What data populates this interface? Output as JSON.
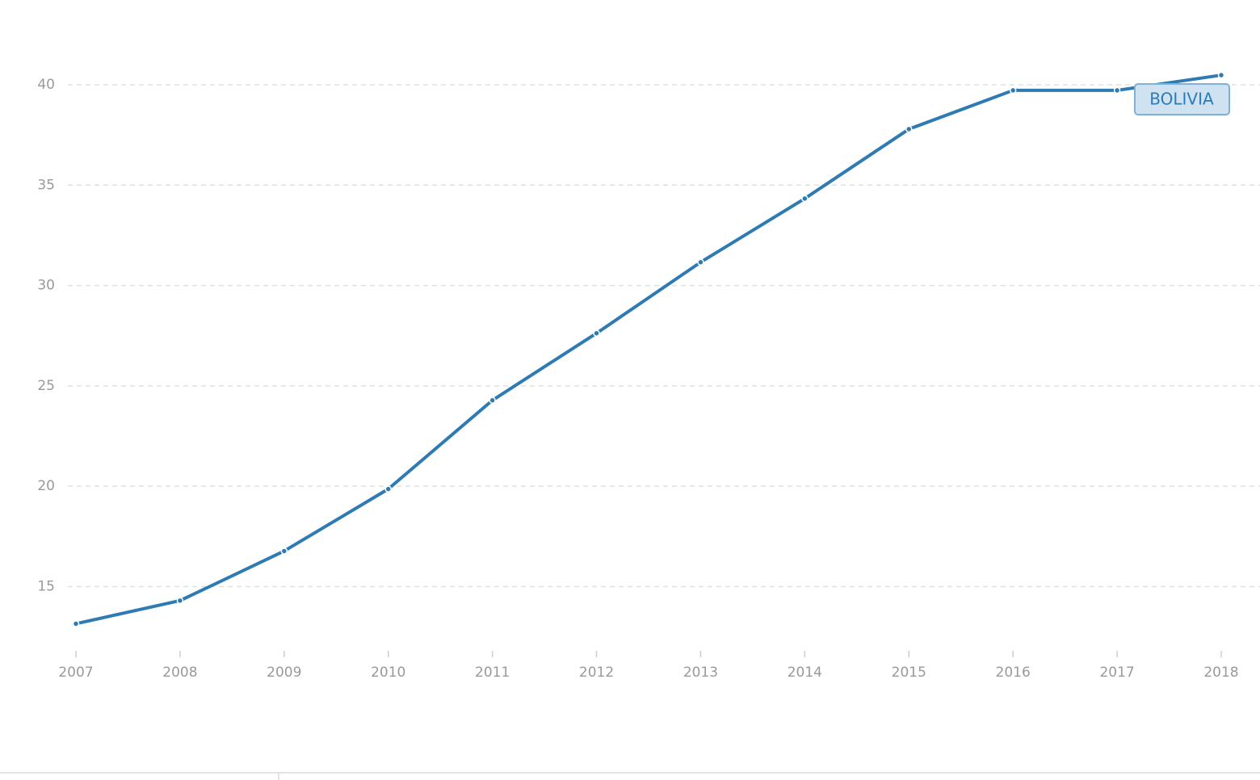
{
  "chart_data": {
    "type": "line",
    "categories": [
      "2007",
      "2008",
      "2009",
      "2010",
      "2011",
      "2012",
      "2013",
      "2014",
      "2015",
      "2016",
      "2017",
      "2018"
    ],
    "series": [
      {
        "name": "BOLIVIA",
        "color": "#2e7bb4",
        "values": [
          13.15,
          14.3,
          16.77,
          19.86,
          24.28,
          27.62,
          31.16,
          34.33,
          37.79,
          39.72,
          39.72,
          40.48
        ]
      }
    ],
    "ylim": [
      11.8,
      43
    ],
    "yticks": [
      15,
      20,
      25,
      30,
      35,
      40
    ],
    "grid": true
  }
}
